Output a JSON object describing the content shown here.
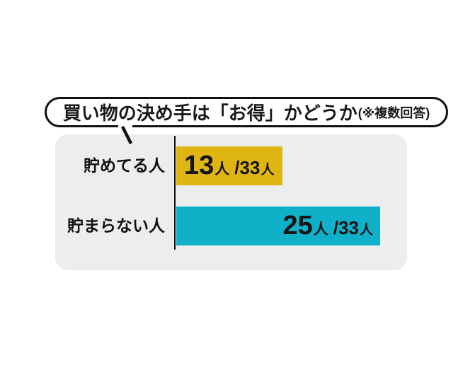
{
  "title": {
    "main": "買い物の決め手は「お得」かどうか",
    "note": "(※複数回答)"
  },
  "chart_data": {
    "type": "bar",
    "orientation": "horizontal",
    "title": "買い物の決め手は「お得」かどうか(※複数回答)",
    "categories": [
      "貯めてる人",
      "貯まらない人"
    ],
    "values": [
      13,
      25
    ],
    "total_respondents": 33,
    "unit": "人",
    "xlim": [
      0,
      33
    ],
    "grid": false,
    "legend": false,
    "bar_colors": [
      "#dfb514",
      "#0fb0c8"
    ],
    "value_labels": [
      "13人/33人",
      "25人/33人"
    ],
    "value_label_positions": [
      "inside-left",
      "inside-right"
    ]
  },
  "rows": [
    {
      "label": "貯めてる人",
      "count": "13",
      "count_unit": "人",
      "fraction": "/33",
      "fraction_unit": "人"
    },
    {
      "label": "貯まらない人",
      "count": "25",
      "count_unit": "人",
      "fraction": "/33",
      "fraction_unit": "人"
    }
  ],
  "colors": {
    "panel_bg": "#ecedee",
    "bar_savers": "#dfb514",
    "bar_non_savers": "#0fb0c8",
    "axis": "#111111",
    "text": "#111111",
    "page_bg": "#ffffff"
  }
}
